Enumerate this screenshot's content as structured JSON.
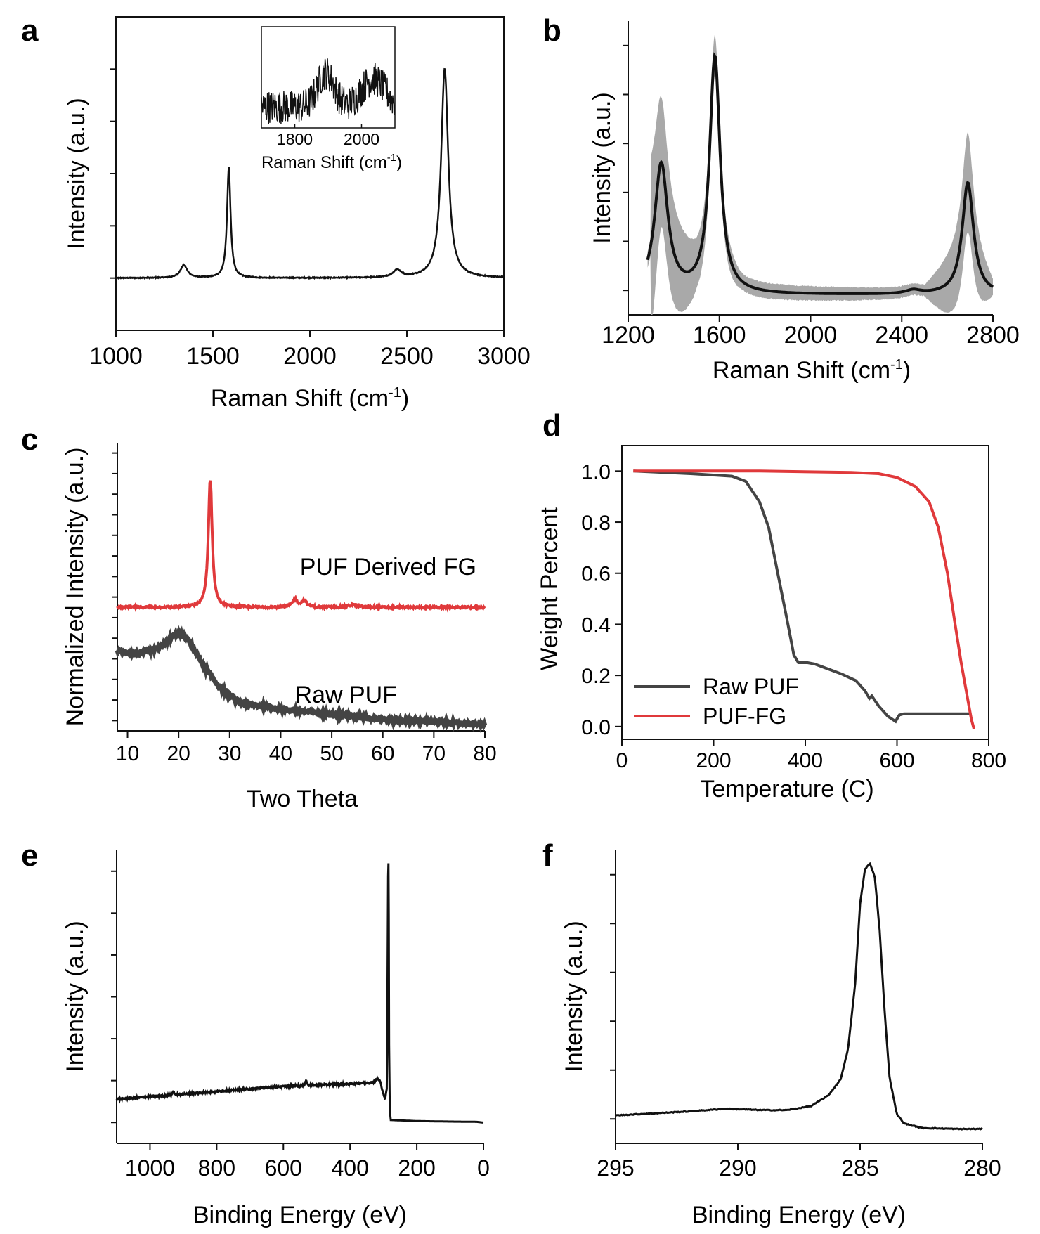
{
  "figure": {
    "panel_labels": [
      "a",
      "b",
      "c",
      "d",
      "e",
      "f"
    ]
  },
  "colors": {
    "black": "#111111",
    "red": "#e0393b",
    "gray": "#444444",
    "band": "#a9a9a9"
  },
  "chart_data": [
    {
      "id": "a",
      "type": "line",
      "title": "",
      "xlabel": "Raman Shift (cm",
      "xlabel_sup": "-1",
      "xlabel_tail": ")",
      "ylabel": "Intensity (a.u.)",
      "xlim": [
        1000,
        3000
      ],
      "ylim": [
        -0.25,
        1.25
      ],
      "xticks": [
        1000,
        1500,
        2000,
        2500,
        3000
      ],
      "yminor": [
        0,
        0.25,
        0.5,
        0.75,
        1.0
      ],
      "peaks": [
        {
          "x": 1350,
          "h": 0.06,
          "w": 22
        },
        {
          "x": 1582,
          "h": 0.53,
          "w": 11
        },
        {
          "x": 2450,
          "h": 0.035,
          "w": 25
        },
        {
          "x": 2695,
          "h": 1.0,
          "w": 22
        }
      ],
      "inset": {
        "xlabel": "Raman Shift (cm",
        "xlabel_sup": "-1",
        "xlabel_tail": ")",
        "xlim": [
          1700,
          2100
        ],
        "xticks": [
          1800,
          2000
        ],
        "bumps": [
          {
            "x": 1893,
            "h": 0.55,
            "w": 35
          },
          {
            "x": 2035,
            "h": 0.45,
            "w": 50
          }
        ]
      }
    },
    {
      "id": "b",
      "type": "line",
      "xlabel": "Raman Shift (cm",
      "xlabel_sup": "-1",
      "xlabel_tail": ")",
      "ylabel": "Intensity (a.u.)",
      "xlim": [
        1200,
        2800
      ],
      "ylim": [
        -0.08,
        1.1
      ],
      "xticks": [
        1200,
        1600,
        2000,
        2400,
        2800
      ],
      "mean_peaks": [
        {
          "x": 1345,
          "h": 0.52,
          "w": 35
        },
        {
          "x": 1580,
          "h": 0.95,
          "w": 28
        },
        {
          "x": 2450,
          "h": 0.015,
          "w": 40
        },
        {
          "x": 2690,
          "h": 0.45,
          "w": 30
        }
      ],
      "band_halfwidth": [
        {
          "x": 1300,
          "v": 0.35
        },
        {
          "x": 1345,
          "v": 0.26
        },
        {
          "x": 1500,
          "v": 0.1
        },
        {
          "x": 1580,
          "v": 0.08
        },
        {
          "x": 1700,
          "v": 0.03
        },
        {
          "x": 2500,
          "v": 0.02
        },
        {
          "x": 2690,
          "v": 0.2
        },
        {
          "x": 2800,
          "v": 0.03
        }
      ]
    },
    {
      "id": "c",
      "type": "line",
      "xlabel": "Two Theta",
      "ylabel": "Normalized Intensity (a.u.)",
      "xlim": [
        8,
        80
      ],
      "ylim": [
        0,
        1.12
      ],
      "xticks": [
        10,
        20,
        30,
        40,
        50,
        60,
        70,
        80
      ],
      "series": [
        {
          "name": "PUF Derived FG",
          "color": "#e0393b",
          "baseline": 0.48,
          "peaks": [
            {
              "x": 26.2,
              "h": 0.5,
              "w": 0.45
            },
            {
              "x": 42.8,
              "h": 0.03,
              "w": 0.6
            },
            {
              "x": 44.6,
              "h": 0.025,
              "w": 0.6
            },
            {
              "x": 54.2,
              "h": 0.01,
              "w": 1.0
            }
          ]
        },
        {
          "name": "Raw PUF",
          "color": "#444444",
          "points": [
            [
              8,
              0.31
            ],
            [
              12,
              0.3
            ],
            [
              16,
              0.32
            ],
            [
              19,
              0.37
            ],
            [
              20,
              0.38
            ],
            [
              22,
              0.35
            ],
            [
              25,
              0.25
            ],
            [
              28,
              0.17
            ],
            [
              32,
              0.11
            ],
            [
              40,
              0.085
            ],
            [
              50,
              0.065
            ],
            [
              60,
              0.045
            ],
            [
              70,
              0.035
            ],
            [
              80,
              0.025
            ]
          ]
        }
      ]
    },
    {
      "id": "d",
      "type": "line",
      "xlabel": "Temperature (C)",
      "ylabel": "Weight Percent",
      "xlim": [
        0,
        800
      ],
      "ylim": [
        -0.05,
        1.1
      ],
      "xticks": [
        0,
        200,
        400,
        600,
        800
      ],
      "yticks": [
        0.0,
        0.2,
        0.4,
        0.6,
        0.8,
        1.0
      ],
      "legend_position": "bottom-left",
      "series": [
        {
          "name": "Raw PUF",
          "color": "#444444",
          "points": [
            [
              25,
              1.0
            ],
            [
              150,
              0.99
            ],
            [
              240,
              0.98
            ],
            [
              270,
              0.96
            ],
            [
              300,
              0.88
            ],
            [
              320,
              0.78
            ],
            [
              340,
              0.6
            ],
            [
              360,
              0.42
            ],
            [
              375,
              0.28
            ],
            [
              385,
              0.25
            ],
            [
              405,
              0.25
            ],
            [
              420,
              0.245
            ],
            [
              450,
              0.225
            ],
            [
              480,
              0.205
            ],
            [
              510,
              0.18
            ],
            [
              530,
              0.14
            ],
            [
              540,
              0.11
            ],
            [
              545,
              0.12
            ],
            [
              560,
              0.08
            ],
            [
              580,
              0.04
            ],
            [
              597,
              0.02
            ],
            [
              600,
              0.03
            ],
            [
              605,
              0.045
            ],
            [
              615,
              0.05
            ],
            [
              660,
              0.05
            ],
            [
              760,
              0.05
            ]
          ]
        },
        {
          "name": "PUF-FG",
          "color": "#e0393b",
          "points": [
            [
              25,
              1.0
            ],
            [
              300,
              1.0
            ],
            [
              500,
              0.995
            ],
            [
              560,
              0.99
            ],
            [
              600,
              0.975
            ],
            [
              640,
              0.94
            ],
            [
              670,
              0.88
            ],
            [
              690,
              0.78
            ],
            [
              710,
              0.6
            ],
            [
              725,
              0.42
            ],
            [
              740,
              0.25
            ],
            [
              755,
              0.1
            ],
            [
              762,
              0.03
            ],
            [
              768,
              -0.01
            ]
          ]
        }
      ]
    },
    {
      "id": "e",
      "type": "line",
      "xlabel": "Binding Energy (eV)",
      "ylabel": "Intensity (a.u.)",
      "xlim": [
        1100,
        0
      ],
      "ylim": [
        -0.08,
        1.05
      ],
      "xticks": [
        1000,
        800,
        600,
        400,
        200,
        0
      ],
      "points": [
        [
          1100,
          0.09
        ],
        [
          1000,
          0.1
        ],
        [
          900,
          0.11
        ],
        [
          800,
          0.12
        ],
        [
          700,
          0.13
        ],
        [
          600,
          0.14
        ],
        [
          500,
          0.145
        ],
        [
          400,
          0.15
        ],
        [
          330,
          0.155
        ],
        [
          318,
          0.17
        ],
        [
          310,
          0.16
        ],
        [
          300,
          0.11
        ],
        [
          295,
          0.09
        ],
        [
          290,
          0.13
        ],
        [
          288,
          0.45
        ],
        [
          286,
          0.95
        ],
        [
          285,
          1.0
        ],
        [
          284,
          0.8
        ],
        [
          283,
          0.3
        ],
        [
          281,
          0.05
        ],
        [
          278,
          0.01
        ],
        [
          200,
          0.006
        ],
        [
          100,
          0.004
        ],
        [
          20,
          0.003
        ],
        [
          0,
          0.0
        ]
      ],
      "small_peaks": [
        {
          "x": 930,
          "h": 0.012
        },
        {
          "x": 532,
          "h": 0.018
        }
      ]
    },
    {
      "id": "f",
      "type": "line",
      "xlabel": "Binding Energy (eV)",
      "ylabel": "Intensity (a.u.)",
      "xlim": [
        295,
        280
      ],
      "ylim": [
        -0.05,
        1.05
      ],
      "xticks": [
        295,
        290,
        285,
        280
      ],
      "points": [
        [
          295,
          0.055
        ],
        [
          292,
          0.07
        ],
        [
          290.5,
          0.08
        ],
        [
          289,
          0.075
        ],
        [
          288,
          0.075
        ],
        [
          287,
          0.09
        ],
        [
          286.3,
          0.13
        ],
        [
          285.8,
          0.19
        ],
        [
          285.5,
          0.3
        ],
        [
          285.2,
          0.55
        ],
        [
          285.0,
          0.85
        ],
        [
          284.8,
          0.98
        ],
        [
          284.6,
          1.0
        ],
        [
          284.4,
          0.95
        ],
        [
          284.2,
          0.75
        ],
        [
          284.0,
          0.45
        ],
        [
          283.8,
          0.2
        ],
        [
          283.5,
          0.06
        ],
        [
          283.2,
          0.025
        ],
        [
          282.5,
          0.008
        ],
        [
          281,
          0.004
        ],
        [
          280,
          0.004
        ]
      ]
    }
  ]
}
